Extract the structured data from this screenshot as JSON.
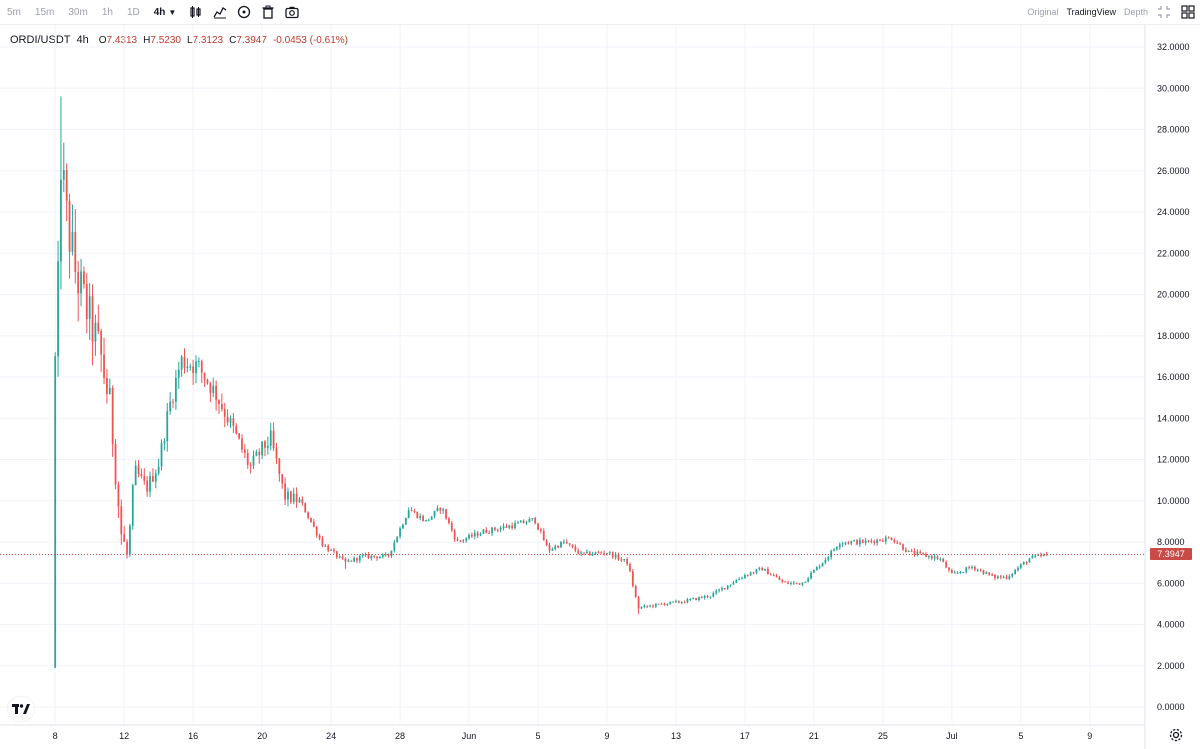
{
  "toolbar": {
    "timeframes": [
      "5m",
      "15m",
      "30m",
      "1h",
      "1D",
      "4h"
    ],
    "active_timeframe": "4h",
    "icons": [
      "candlestick-icon",
      "indicator-icon",
      "drawing-icon",
      "trash-icon",
      "camera-icon"
    ],
    "views": [
      "Original",
      "TradingView",
      "Depth"
    ],
    "active_view": "TradingView",
    "right_icons": [
      "fullscreen-icon",
      "layout-grid-icon"
    ]
  },
  "legend": {
    "symbol": "ORDI/USDT",
    "interval": "4h",
    "open_label": "O",
    "open": "7.4313",
    "high_label": "H",
    "high": "7.5230",
    "low_label": "L",
    "low": "7.3123",
    "close_label": "C",
    "close": "7.3947",
    "change": "-0.0453 (-0.61%)"
  },
  "colors": {
    "up": "#26a69a",
    "down": "#ef5350",
    "last_price": "#c94a46",
    "grid": "#f0f3fa",
    "axis_text": "#131722"
  },
  "chart_data": {
    "type": "candlestick",
    "title": "ORDI/USDT",
    "interval": "4h",
    "last_price": 7.3947,
    "last_price_label": "7.3947",
    "ylim": [
      0,
      32
    ],
    "y_ticks": [
      "32.0000",
      "30.0000",
      "28.0000",
      "26.0000",
      "24.0000",
      "22.0000",
      "20.0000",
      "18.0000",
      "16.0000",
      "14.0000",
      "12.0000",
      "10.0000",
      "8.0000",
      "6.0000",
      "4.0000",
      "2.0000",
      "0.0000"
    ],
    "y_tick_values": [
      32,
      30,
      28,
      26,
      24,
      22,
      20,
      18,
      16,
      14,
      12,
      10,
      8,
      6,
      4,
      2,
      0
    ],
    "x_tick_labels": [
      "8",
      "12",
      "16",
      "20",
      "24",
      "28",
      "Jun",
      "5",
      "9",
      "13",
      "17",
      "21",
      "25",
      "Jul",
      "5",
      "9"
    ],
    "x_tick_days": [
      0,
      4,
      8,
      12,
      16,
      20,
      24,
      28,
      32,
      36,
      40,
      44,
      48,
      52,
      56,
      60
    ],
    "x_range_days": [
      -3.2,
      63.2
    ],
    "trend": [
      [
        0.0,
        1.9
      ],
      [
        0.1,
        17
      ],
      [
        0.3,
        27
      ],
      [
        0.6,
        24
      ],
      [
        1.2,
        21
      ],
      [
        2.0,
        18.8
      ],
      [
        2.6,
        17.2
      ],
      [
        3.2,
        14.5
      ],
      [
        3.8,
        8.5
      ],
      [
        4.2,
        7.3
      ],
      [
        4.6,
        11.5
      ],
      [
        5.3,
        10.6
      ],
      [
        6.0,
        11.8
      ],
      [
        6.6,
        14.5
      ],
      [
        7.3,
        16.8
      ],
      [
        8.3,
        16.5
      ],
      [
        9.3,
        15.2
      ],
      [
        10.3,
        13.5
      ],
      [
        11.3,
        11.6
      ],
      [
        12.0,
        12.5
      ],
      [
        12.5,
        13.0
      ],
      [
        13.3,
        10.2
      ],
      [
        14.2,
        10.0
      ],
      [
        15.5,
        7.9
      ],
      [
        16.8,
        7.0
      ],
      [
        17.8,
        7.3
      ],
      [
        19.3,
        7.3
      ],
      [
        20.5,
        9.6
      ],
      [
        21.5,
        9.0
      ],
      [
        22.4,
        9.7
      ],
      [
        23.3,
        8.0
      ],
      [
        24.8,
        8.5
      ],
      [
        26.5,
        8.8
      ],
      [
        27.8,
        9.1
      ],
      [
        28.6,
        7.6
      ],
      [
        29.5,
        8.0
      ],
      [
        30.5,
        7.4
      ],
      [
        32.0,
        7.5
      ],
      [
        33.2,
        7.0
      ],
      [
        33.8,
        4.8
      ],
      [
        35.2,
        5.0
      ],
      [
        36.3,
        5.1
      ],
      [
        38.0,
        5.4
      ],
      [
        40.0,
        6.4
      ],
      [
        41.0,
        6.7
      ],
      [
        42.3,
        6.0
      ],
      [
        43.3,
        6.0
      ],
      [
        44.8,
        7.3
      ],
      [
        45.5,
        8.0
      ],
      [
        47.0,
        8.0
      ],
      [
        48.5,
        8.2
      ],
      [
        49.5,
        7.5
      ],
      [
        51.3,
        7.2
      ],
      [
        52.0,
        6.4
      ],
      [
        53.2,
        6.8
      ],
      [
        54.4,
        6.3
      ],
      [
        55.2,
        6.3
      ],
      [
        56.5,
        7.2
      ],
      [
        57.6,
        7.39
      ]
    ]
  }
}
